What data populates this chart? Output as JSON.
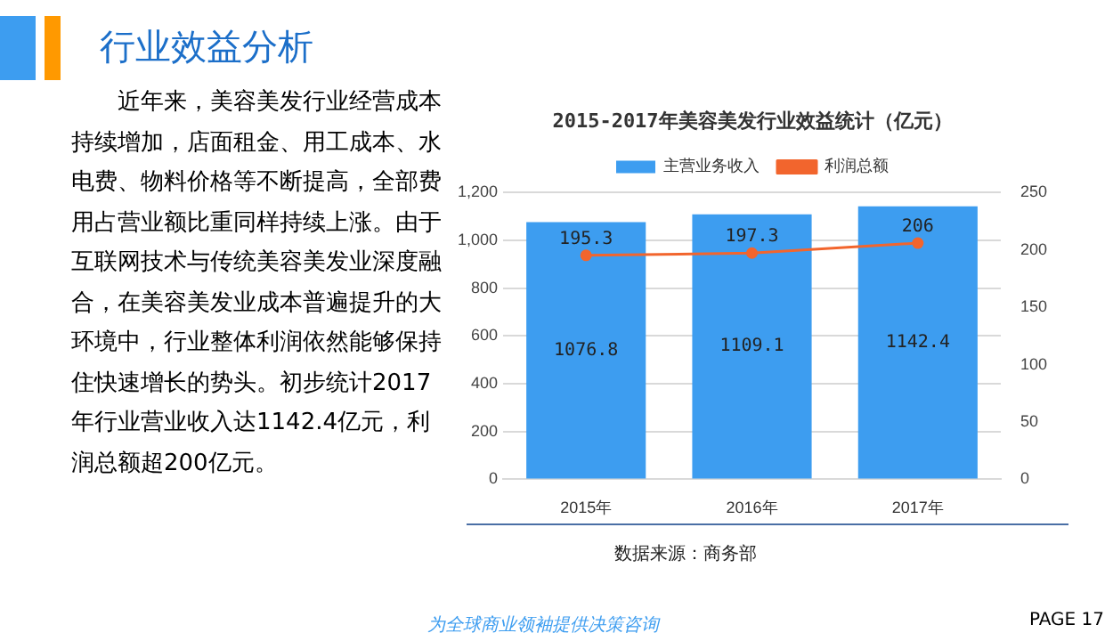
{
  "chart_data": {
    "type": "bar",
    "title": "2015-2017年美容美发行业效益统计（亿元）",
    "categories": [
      "2015年",
      "2016年",
      "2017年"
    ],
    "series": [
      {
        "name": "主营业务收入",
        "color": "#3d9df0",
        "values": [
          1076.8,
          1109.1,
          1142.4
        ]
      },
      {
        "name": "利润总额",
        "type": "line",
        "axis": "y2",
        "color": "#f2652d",
        "values": [
          195.3,
          197.3,
          206
        ]
      }
    ],
    "ylim": [
      0,
      1200
    ],
    "yticks": [
      0,
      200,
      400,
      600,
      800,
      {
        "value": 1000,
        "label": "1,000"
      },
      {
        "value": 1200,
        "label": "1,200"
      }
    ],
    "y2lim": [
      0,
      250
    ],
    "y2ticks": [
      0,
      50,
      100,
      150,
      200,
      250
    ],
    "grid": "y",
    "legend": "top",
    "marker": "circle",
    "data_labels": true,
    "annotations": [
      "行业效益分析",
      "近年来，美容美发行业经营成本持续增加，店面租金、用工成本、水电费、物料价格等不断提高，全部费用占营业额比重同样持续上涨。由于互联网技术与传统美容美发业深度融合，在美容美发业成本普遍提升的大环境中，行业整体利润依然能够保持住快速增长的势头。初步统计2017年行业营业收入达1142.4亿元，利润总额超200亿元。",
      "数据来源：商务部",
      "为全球商业领袖提供决策咨询",
      "PAGE 17"
    ]
  }
}
